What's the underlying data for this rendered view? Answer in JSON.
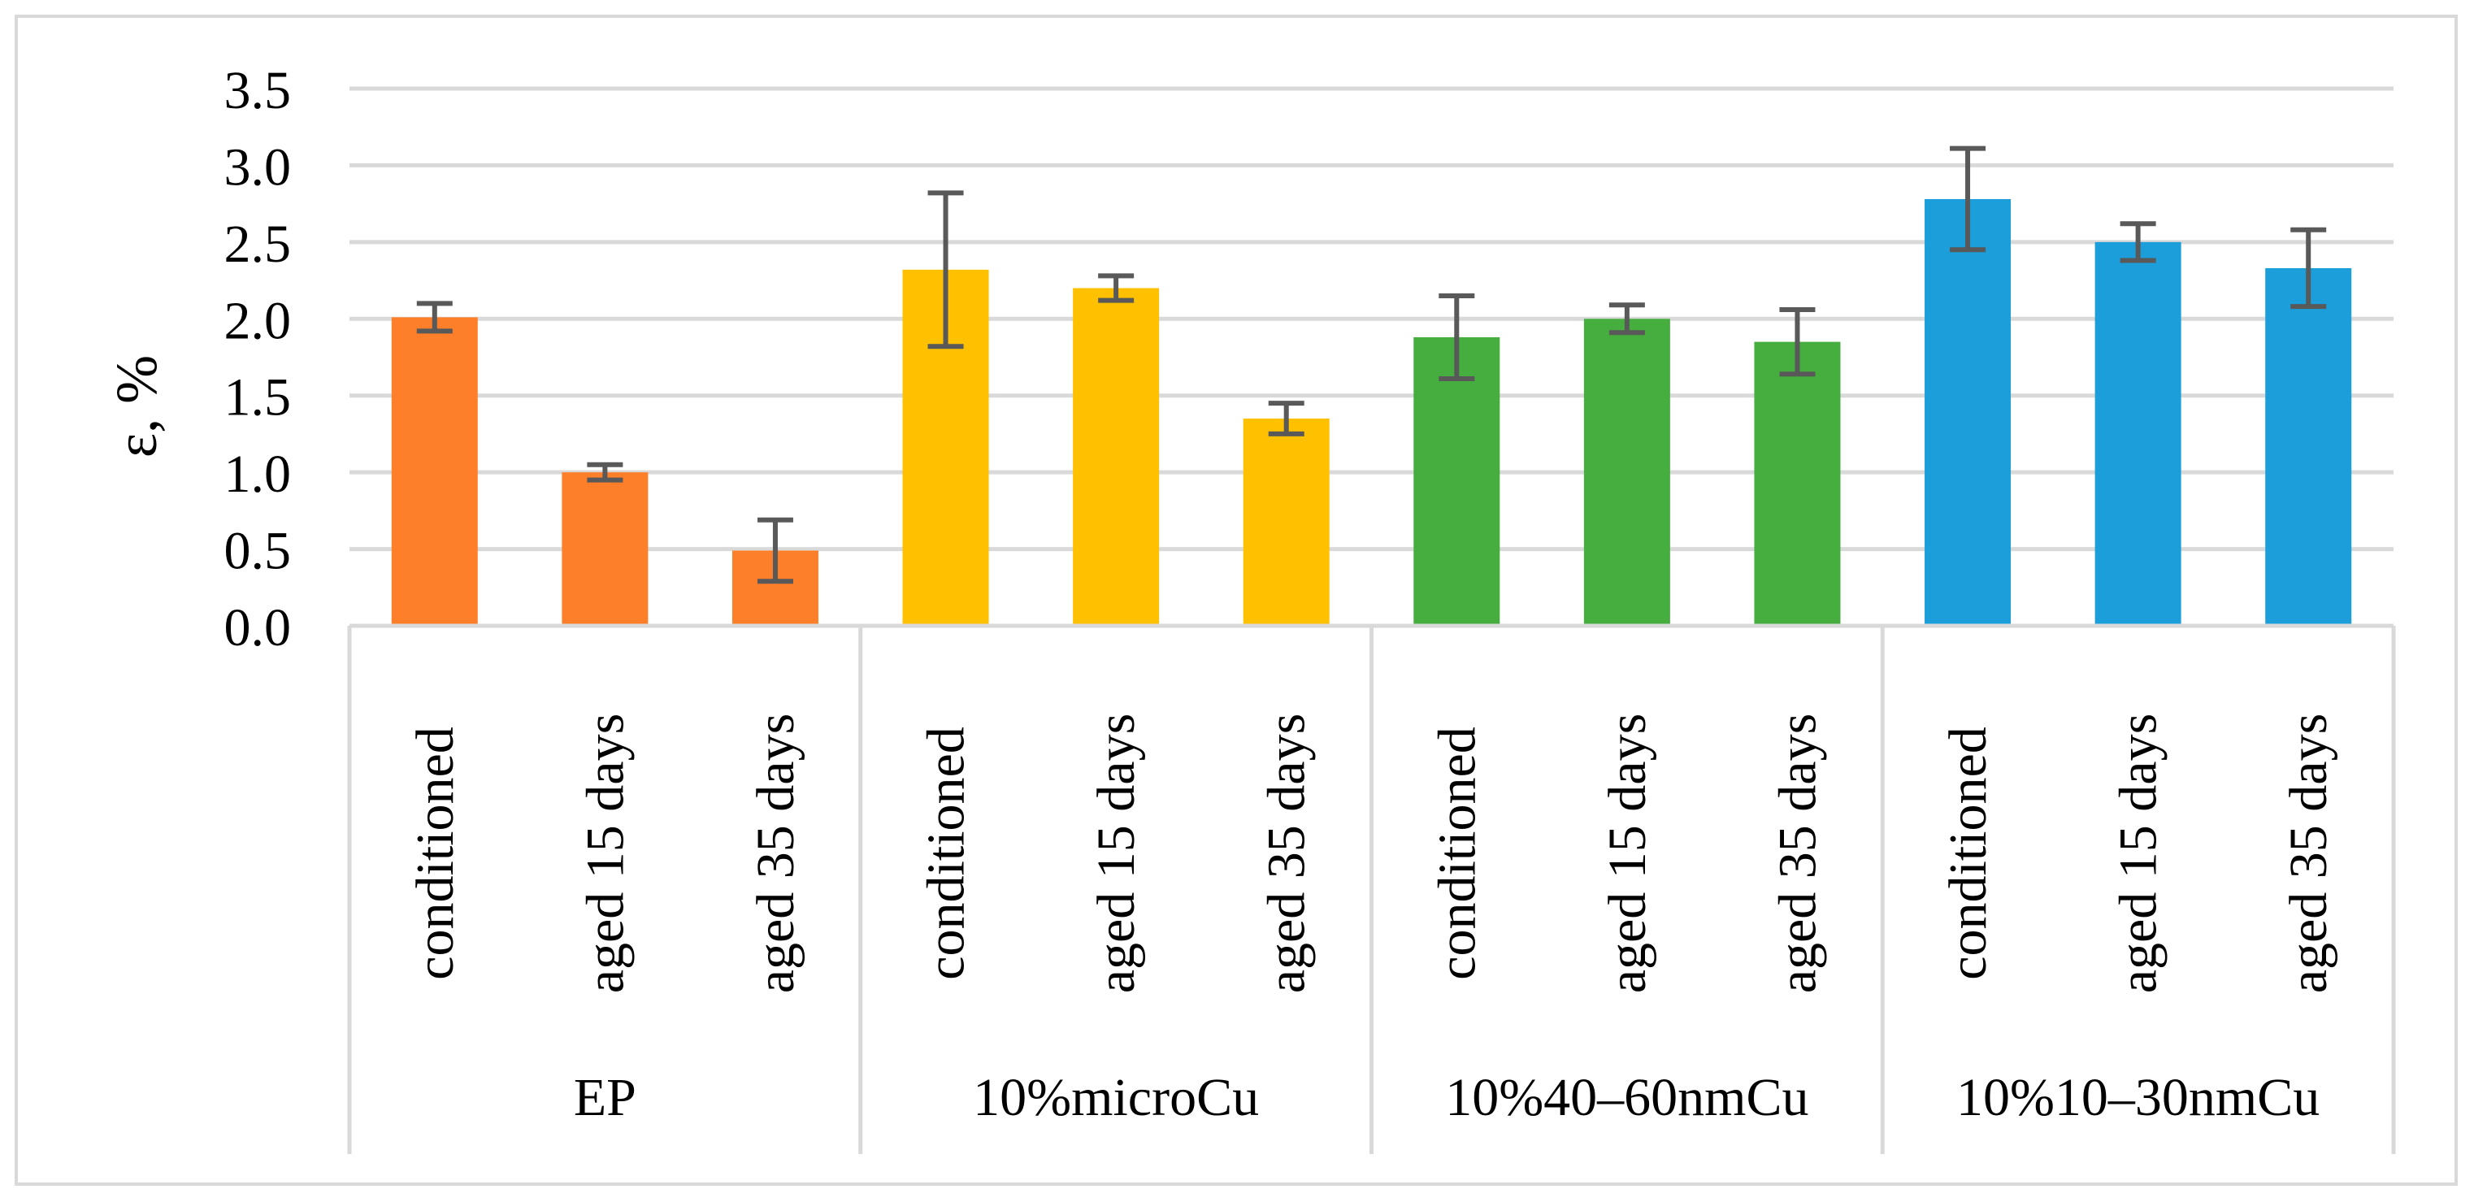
{
  "chart_data": {
    "type": "bar",
    "title": "",
    "xlabel": "",
    "ylabel": "ε, %",
    "ylim": [
      0,
      3.5
    ],
    "yticks": [
      0.0,
      0.5,
      1.0,
      1.5,
      2.0,
      2.5,
      3.0,
      3.5
    ],
    "ytick_labels": [
      "0.0",
      "0.5",
      "1.0",
      "1.5",
      "2.0",
      "2.5",
      "3.0",
      "3.5"
    ],
    "grid": true,
    "groups": [
      {
        "name": "EP",
        "color": "#fe7f2a",
        "categories": [
          "conditioned",
          "aged 15 days",
          "aged 35 days"
        ],
        "values": [
          2.01,
          1.0,
          0.49
        ],
        "errors": [
          0.09,
          0.05,
          0.2
        ]
      },
      {
        "name": "10%microCu",
        "color": "#ffc000",
        "categories": [
          "conditioned",
          "aged 15 days",
          "aged 35 days"
        ],
        "values": [
          2.32,
          2.2,
          1.35
        ],
        "errors": [
          0.5,
          0.08,
          0.1
        ]
      },
      {
        "name": "10%40–60nmCu",
        "color": "#45ae3e",
        "categories": [
          "conditioned",
          "aged 15 days",
          "aged 35 days"
        ],
        "values": [
          1.88,
          2.0,
          1.85
        ],
        "errors": [
          0.27,
          0.09,
          0.21
        ]
      },
      {
        "name": "10%10–30nmCu",
        "color": "#1b9ed9",
        "categories": [
          "conditioned",
          "aged 15 days",
          "aged 35 days"
        ],
        "values": [
          2.78,
          2.5,
          2.33
        ],
        "errors": [
          0.33,
          0.12,
          0.25
        ]
      }
    ],
    "error_bar_color": "#595959",
    "grid_color": "#d9d9d9"
  }
}
